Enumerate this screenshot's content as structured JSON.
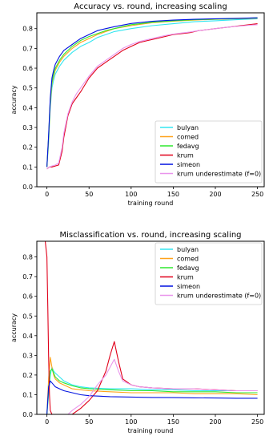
{
  "chart_data": [
    {
      "type": "line",
      "title": "Accuracy vs. round, increasing scaling",
      "xlabel": "training round",
      "ylabel": "accuracy",
      "xlim": [
        -12,
        258
      ],
      "ylim": [
        0.0,
        0.88
      ],
      "xticks": [
        0,
        50,
        100,
        150,
        200,
        250
      ],
      "yticks": [
        0.0,
        0.1,
        0.2,
        0.3,
        0.4,
        0.5,
        0.6,
        0.7,
        0.8
      ],
      "legend_position": "lower-right",
      "series": [
        {
          "name": "bulyan",
          "color": "#32e6f0",
          "x": [
            0,
            2,
            4,
            6,
            8,
            10,
            15,
            20,
            30,
            40,
            50,
            60,
            70,
            80,
            100,
            125,
            150,
            175,
            200,
            225,
            250
          ],
          "y": [
            0.1,
            0.22,
            0.4,
            0.5,
            0.54,
            0.57,
            0.61,
            0.64,
            0.68,
            0.71,
            0.73,
            0.755,
            0.77,
            0.785,
            0.8,
            0.815,
            0.825,
            0.835,
            0.84,
            0.845,
            0.85
          ]
        },
        {
          "name": "comed",
          "color": "#ffa21a",
          "x": [
            0,
            2,
            4,
            6,
            8,
            10,
            15,
            20,
            30,
            40,
            50,
            60,
            70,
            80,
            100,
            125,
            150,
            175,
            200,
            225,
            250
          ],
          "y": [
            0.1,
            0.24,
            0.42,
            0.52,
            0.56,
            0.59,
            0.63,
            0.66,
            0.7,
            0.73,
            0.75,
            0.77,
            0.785,
            0.8,
            0.815,
            0.83,
            0.838,
            0.843,
            0.847,
            0.85,
            0.853
          ]
        },
        {
          "name": "fedavg",
          "color": "#2ee82e",
          "x": [
            0,
            2,
            4,
            6,
            8,
            10,
            15,
            20,
            30,
            40,
            50,
            60,
            70,
            80,
            100,
            125,
            150,
            175,
            200,
            225,
            250
          ],
          "y": [
            0.1,
            0.25,
            0.44,
            0.53,
            0.57,
            0.6,
            0.64,
            0.67,
            0.71,
            0.74,
            0.76,
            0.775,
            0.79,
            0.8,
            0.82,
            0.832,
            0.84,
            0.845,
            0.848,
            0.851,
            0.855
          ]
        },
        {
          "name": "krum",
          "color": "#e0001a",
          "x": [
            0,
            3,
            6,
            10,
            14,
            18,
            20,
            25,
            30,
            35,
            40,
            50,
            60,
            70,
            80,
            90,
            100,
            110,
            120,
            130,
            140,
            150,
            160,
            170,
            180,
            190,
            200,
            210,
            220,
            230,
            240,
            250
          ],
          "y": [
            0.09,
            0.1,
            0.1,
            0.105,
            0.11,
            0.18,
            0.25,
            0.36,
            0.42,
            0.45,
            0.48,
            0.55,
            0.6,
            0.63,
            0.66,
            0.69,
            0.71,
            0.73,
            0.74,
            0.75,
            0.76,
            0.77,
            0.775,
            0.78,
            0.79,
            0.795,
            0.8,
            0.805,
            0.81,
            0.815,
            0.82,
            0.825
          ]
        },
        {
          "name": "simeon",
          "color": "#0011e0",
          "x": [
            0,
            2,
            4,
            6,
            8,
            10,
            15,
            20,
            30,
            40,
            50,
            60,
            70,
            80,
            100,
            125,
            150,
            175,
            200,
            225,
            250
          ],
          "y": [
            0.1,
            0.26,
            0.45,
            0.55,
            0.59,
            0.62,
            0.66,
            0.69,
            0.72,
            0.75,
            0.77,
            0.79,
            0.8,
            0.81,
            0.826,
            0.837,
            0.843,
            0.847,
            0.85,
            0.852,
            0.855
          ]
        },
        {
          "name": "krum underestimate (f=0)",
          "color": "#e994ec",
          "x": [
            0,
            3,
            6,
            10,
            14,
            18,
            20,
            25,
            30,
            35,
            40,
            50,
            60,
            70,
            80,
            90,
            100,
            110,
            120,
            130,
            140,
            150,
            160,
            170,
            180,
            190,
            200,
            210,
            220,
            230,
            240,
            250
          ],
          "y": [
            0.09,
            0.1,
            0.105,
            0.11,
            0.12,
            0.2,
            0.27,
            0.37,
            0.43,
            0.47,
            0.5,
            0.56,
            0.61,
            0.64,
            0.67,
            0.7,
            0.72,
            0.735,
            0.745,
            0.755,
            0.765,
            0.772,
            0.778,
            0.783,
            0.79,
            0.795,
            0.8,
            0.805,
            0.81,
            0.813,
            0.817,
            0.82
          ]
        }
      ]
    },
    {
      "type": "line",
      "title": "Misclassification vs. round, increasing scaling",
      "xlabel": "training round",
      "ylabel": "accuracy",
      "xlim": [
        -12,
        258
      ],
      "ylim": [
        0.0,
        0.88
      ],
      "xticks": [
        0,
        50,
        100,
        150,
        200,
        250
      ],
      "yticks": [
        0.0,
        0.1,
        0.2,
        0.3,
        0.4,
        0.5,
        0.6,
        0.7,
        0.8
      ],
      "legend_position": "top-right",
      "series": [
        {
          "name": "bulyan",
          "color": "#32e6f0",
          "x": [
            0,
            2,
            4,
            6,
            8,
            10,
            15,
            20,
            30,
            40,
            50,
            75,
            100,
            125,
            150,
            175,
            200,
            225,
            250
          ],
          "y": [
            0.0,
            0.1,
            0.2,
            0.24,
            0.22,
            0.21,
            0.19,
            0.17,
            0.15,
            0.14,
            0.135,
            0.13,
            0.13,
            0.125,
            0.125,
            0.12,
            0.12,
            0.12,
            0.12
          ]
        },
        {
          "name": "comed",
          "color": "#ffa21a",
          "x": [
            0,
            2,
            4,
            6,
            8,
            10,
            15,
            20,
            30,
            40,
            50,
            75,
            100,
            125,
            150,
            175,
            200,
            225,
            250
          ],
          "y": [
            0.0,
            0.18,
            0.29,
            0.24,
            0.2,
            0.18,
            0.16,
            0.15,
            0.13,
            0.125,
            0.12,
            0.115,
            0.11,
            0.11,
            0.11,
            0.105,
            0.105,
            0.105,
            0.1
          ]
        },
        {
          "name": "fedavg",
          "color": "#2ee82e",
          "x": [
            0,
            2,
            4,
            6,
            8,
            10,
            15,
            20,
            30,
            40,
            50,
            75,
            100,
            125,
            150,
            175,
            200,
            225,
            250
          ],
          "y": [
            0.0,
            0.12,
            0.22,
            0.23,
            0.21,
            0.19,
            0.17,
            0.16,
            0.145,
            0.135,
            0.13,
            0.125,
            0.12,
            0.12,
            0.115,
            0.115,
            0.115,
            0.11,
            0.11
          ]
        },
        {
          "name": "krum",
          "color": "#e0001a",
          "x": [
            -2,
            0,
            1,
            2,
            3,
            4,
            6,
            10,
            20,
            25,
            30,
            40,
            50,
            60,
            70,
            75,
            80,
            85,
            90,
            100,
            110,
            125,
            150,
            175,
            200,
            225,
            250
          ],
          "y": [
            0.88,
            0.8,
            0.55,
            0.3,
            0.1,
            0.02,
            0.0,
            0.0,
            0.0,
            0.0,
            0.0,
            0.03,
            0.07,
            0.12,
            0.22,
            0.3,
            0.37,
            0.27,
            0.18,
            0.15,
            0.14,
            0.135,
            0.13,
            0.13,
            0.125,
            0.12,
            0.12
          ]
        },
        {
          "name": "simeon",
          "color": "#0011e0",
          "x": [
            0,
            2,
            4,
            6,
            8,
            10,
            15,
            20,
            30,
            40,
            50,
            75,
            100,
            125,
            150,
            175,
            200,
            225,
            250
          ],
          "y": [
            0.0,
            0.14,
            0.17,
            0.16,
            0.15,
            0.14,
            0.13,
            0.12,
            0.11,
            0.1,
            0.095,
            0.09,
            0.088,
            0.086,
            0.085,
            0.084,
            0.083,
            0.082,
            0.082
          ]
        },
        {
          "name": "krum underestimate (f=0)",
          "color": "#e994ec",
          "x": [
            0,
            2,
            4,
            6,
            10,
            20,
            25,
            30,
            40,
            50,
            60,
            70,
            75,
            80,
            85,
            90,
            100,
            110,
            125,
            150,
            175,
            200,
            225,
            250
          ],
          "y": [
            0.0,
            0.0,
            0.0,
            0.0,
            0.0,
            0.0,
            0.0,
            0.02,
            0.05,
            0.09,
            0.15,
            0.2,
            0.24,
            0.28,
            0.22,
            0.17,
            0.15,
            0.14,
            0.135,
            0.13,
            0.13,
            0.125,
            0.12,
            0.12
          ]
        }
      ]
    }
  ]
}
